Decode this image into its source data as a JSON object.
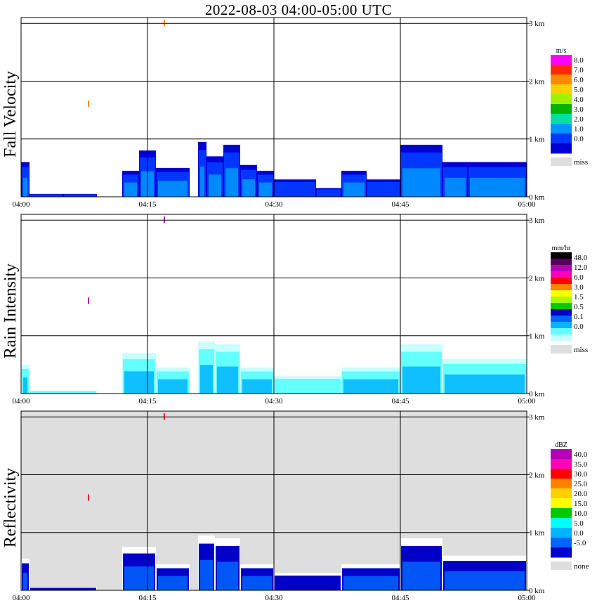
{
  "title": "2022-08-03   04:00-05:00 UTC",
  "colors": {
    "missing_fill": "#dedede",
    "frame": "#000000",
    "background": "#ffffff"
  },
  "chart_data": [
    {
      "type": "heatmap",
      "title": "",
      "ylabel": "Fall Velocity",
      "x_ticks": [
        "04:00",
        "04:15",
        "04:30",
        "04:45",
        "05:00"
      ],
      "y_ticks": [
        "3 km",
        "2 km",
        "1 km",
        "0 km"
      ],
      "y_tick_values": [
        3,
        2,
        1,
        0
      ],
      "xlim": [
        "04:00",
        "05:00"
      ],
      "ylim": [
        0,
        3.1
      ],
      "grid": true,
      "legend": {
        "placement": "right",
        "unit": "m/s",
        "labels": [
          "8.0",
          "7.0",
          "6.0",
          "5.0",
          "4.0",
          "3.0",
          "2.0",
          "1.0",
          "0.0"
        ],
        "colors": [
          "#ff00ff",
          "#ff2a00",
          "#ff8a00",
          "#ffd000",
          "#a0f000",
          "#00b400",
          "#00e0a0",
          "#0096ff",
          "#0036ff",
          "#0000d2"
        ],
        "missing_label": "miss",
        "missing_color": "#dedede"
      },
      "echo_tops": [
        {
          "start": "04:00",
          "end": "04:01",
          "top_km": 0.6
        },
        {
          "start": "04:01",
          "end": "04:05",
          "top_km": 0.05
        },
        {
          "start": "04:05",
          "end": "04:09",
          "top_km": 0.05
        },
        {
          "start": "04:12",
          "end": "04:14",
          "top_km": 0.45
        },
        {
          "start": "04:14",
          "end": "04:16",
          "top_km": 0.8
        },
        {
          "start": "04:16",
          "end": "04:20",
          "top_km": 0.5
        },
        {
          "start": "04:21",
          "end": "04:22",
          "top_km": 0.95
        },
        {
          "start": "04:22",
          "end": "04:24",
          "top_km": 0.7
        },
        {
          "start": "04:24",
          "end": "04:26",
          "top_km": 0.9
        },
        {
          "start": "04:26",
          "end": "04:28",
          "top_km": 0.55
        },
        {
          "start": "04:28",
          "end": "04:30",
          "top_km": 0.45
        },
        {
          "start": "04:30",
          "end": "04:35",
          "top_km": 0.3
        },
        {
          "start": "04:35",
          "end": "04:38",
          "top_km": 0.15
        },
        {
          "start": "04:38",
          "end": "04:41",
          "top_km": 0.45
        },
        {
          "start": "04:41",
          "end": "04:45",
          "top_km": 0.3
        },
        {
          "start": "04:45",
          "end": "04:50",
          "top_km": 0.9
        },
        {
          "start": "04:50",
          "end": "04:53",
          "top_km": 0.6
        },
        {
          "start": "04:53",
          "end": "05:00",
          "top_km": 0.6
        }
      ],
      "isolated_points": [
        {
          "time": "04:08",
          "height_km": 1.6
        },
        {
          "time": "04:17",
          "height_km": 3.0
        }
      ]
    },
    {
      "type": "heatmap",
      "title": "",
      "ylabel": "Rain Intensity",
      "x_ticks": [
        "04:00",
        "04:15",
        "04:30",
        "04:45",
        "05:00"
      ],
      "y_ticks": [
        "3 km",
        "2 km",
        "1 km",
        "0 km"
      ],
      "y_tick_values": [
        3,
        2,
        1,
        0
      ],
      "xlim": [
        "04:00",
        "05:00"
      ],
      "ylim": [
        0,
        3.1
      ],
      "grid": true,
      "legend": {
        "placement": "right",
        "unit": "mm/hr",
        "labels": [
          "48.0",
          "12.0",
          "6.0",
          "3.0",
          "1.5",
          "0.5",
          "0.1",
          "0.0"
        ],
        "colors": [
          "#000000",
          "#5a005a",
          "#b400b4",
          "#ff00b4",
          "#ff0000",
          "#ff8200",
          "#ffff00",
          "#a0ff00",
          "#00c800",
          "#0000c8",
          "#0064ff",
          "#00b4ff",
          "#64ffff",
          "#c8ffff"
        ],
        "missing_label": "miss",
        "missing_color": "#dedede"
      },
      "echo_tops": [
        {
          "start": "04:00",
          "end": "04:01",
          "top_km": 0.5
        },
        {
          "start": "04:01",
          "end": "04:09",
          "top_km": 0.05
        },
        {
          "start": "04:12",
          "end": "04:16",
          "top_km": 0.7
        },
        {
          "start": "04:16",
          "end": "04:20",
          "top_km": 0.45
        },
        {
          "start": "04:21",
          "end": "04:23",
          "top_km": 0.9
        },
        {
          "start": "04:23",
          "end": "04:26",
          "top_km": 0.85
        },
        {
          "start": "04:26",
          "end": "04:30",
          "top_km": 0.45
        },
        {
          "start": "04:30",
          "end": "04:38",
          "top_km": 0.3
        },
        {
          "start": "04:38",
          "end": "04:45",
          "top_km": 0.45
        },
        {
          "start": "04:45",
          "end": "04:50",
          "top_km": 0.85
        },
        {
          "start": "04:50",
          "end": "05:00",
          "top_km": 0.6
        }
      ],
      "isolated_points": [
        {
          "time": "04:08",
          "height_km": 1.6
        },
        {
          "time": "04:17",
          "height_km": 3.0
        }
      ]
    },
    {
      "type": "heatmap",
      "title": "",
      "ylabel": "Reflectivity",
      "x_ticks": [
        "04:00",
        "04:15",
        "04:30",
        "04:45",
        "05:00"
      ],
      "y_ticks": [
        "3 km",
        "2 km",
        "1 km",
        "0 km"
      ],
      "y_tick_values": [
        3,
        2,
        1,
        0
      ],
      "xlim": [
        "04:00",
        "05:00"
      ],
      "ylim": [
        0,
        3.1
      ],
      "grid": true,
      "legend": {
        "placement": "right",
        "unit": "dBZ",
        "labels": [
          "40.0",
          "35.0",
          "30.0",
          "25.0",
          "20.0",
          "15.0",
          "10.0",
          "5.0",
          "0.0",
          "-5.0"
        ],
        "colors": [
          "#b400b4",
          "#ff00b4",
          "#ff0000",
          "#ff8200",
          "#ffd000",
          "#ffff00",
          "#00c800",
          "#00ffff",
          "#00b4ff",
          "#0064ff",
          "#0000c8"
        ],
        "missing_label": "none",
        "missing_color": "#dedede"
      },
      "echo_tops": [
        {
          "start": "04:00",
          "end": "04:01",
          "top_km": 0.55
        },
        {
          "start": "04:01",
          "end": "04:09",
          "top_km": 0.05
        },
        {
          "start": "04:12",
          "end": "04:16",
          "top_km": 0.75
        },
        {
          "start": "04:16",
          "end": "04:20",
          "top_km": 0.45
        },
        {
          "start": "04:21",
          "end": "04:23",
          "top_km": 0.95
        },
        {
          "start": "04:23",
          "end": "04:26",
          "top_km": 0.9
        },
        {
          "start": "04:26",
          "end": "04:30",
          "top_km": 0.45
        },
        {
          "start": "04:30",
          "end": "04:38",
          "top_km": 0.3
        },
        {
          "start": "04:38",
          "end": "04:45",
          "top_km": 0.45
        },
        {
          "start": "04:45",
          "end": "04:50",
          "top_km": 0.9
        },
        {
          "start": "04:50",
          "end": "05:00",
          "top_km": 0.6
        }
      ],
      "isolated_points": [
        {
          "time": "04:08",
          "height_km": 1.6
        },
        {
          "time": "04:17",
          "height_km": 3.0
        }
      ]
    }
  ]
}
